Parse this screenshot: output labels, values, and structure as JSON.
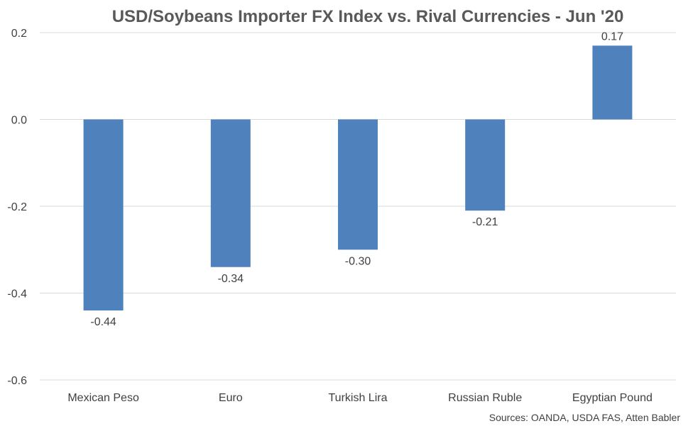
{
  "chart_data": {
    "type": "bar",
    "title": "USD/Soybeans Importer FX Index vs. Rival Currencies - Jun '20",
    "categories": [
      "Mexican Peso",
      "Euro",
      "Turkish Lira",
      "Russian Ruble",
      "Egyptian Pound"
    ],
    "values": [
      -0.44,
      -0.34,
      -0.3,
      -0.21,
      0.17
    ],
    "data_labels": [
      "-0.44",
      "-0.34",
      "-0.30",
      "-0.21",
      "0.17"
    ],
    "ylim": [
      -0.6,
      0.2
    ],
    "yticks": [
      0.2,
      0.0,
      -0.2,
      -0.4,
      -0.6
    ],
    "ytick_labels": [
      "0.2",
      "0.0",
      "-0.2",
      "-0.4",
      "-0.6"
    ],
    "grid": true,
    "bar_color": "#4f81bd",
    "source": "Sources: OANDA, USDA FAS, Atten Babler"
  }
}
